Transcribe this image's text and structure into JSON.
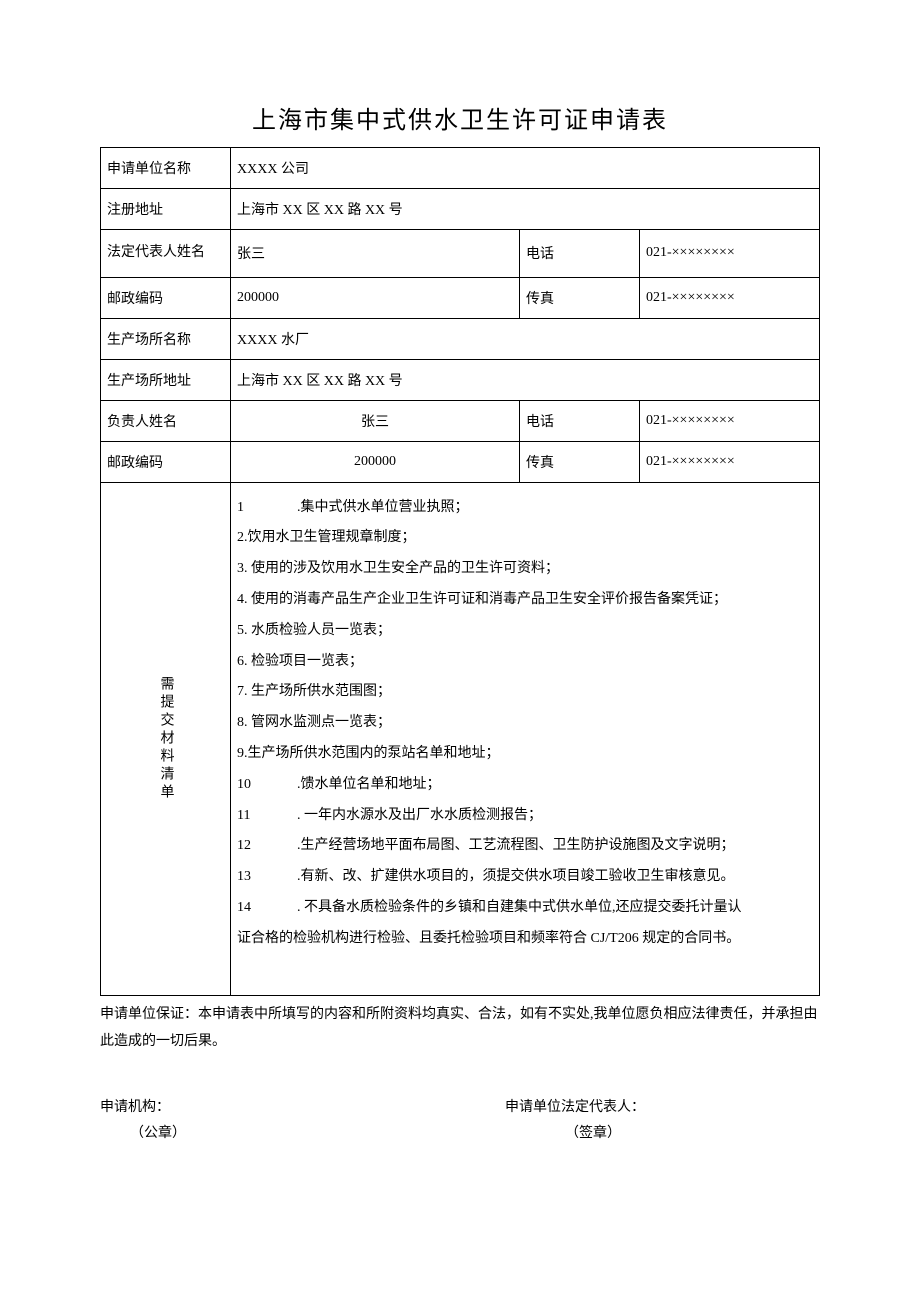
{
  "title": "上海市集中式供水卫生许可证申请表",
  "rows": {
    "unit_name_label": "申请单位名称",
    "unit_name_value": "XXXX 公司",
    "reg_addr_label": "注册地址",
    "reg_addr_value": "上海市 XX 区 XX 路 XX 号",
    "legal_rep_label": "法定代表人姓名",
    "legal_rep_value": "张三",
    "phone_label": "电话",
    "phone_value": "021-××××××××",
    "postal_label": "邮政编码",
    "postal_value": "200000",
    "fax_label": "传真",
    "fax_value": "021-××××××××",
    "prod_site_name_label": "生产场所名称",
    "prod_site_name_value": "XXXX 水厂",
    "prod_site_addr_label": "生产场所地址",
    "prod_site_addr_value": "上海市 XX 区 XX 路 XX 号",
    "resp_person_label": "负责人姓名",
    "resp_person_value": "张三",
    "phone2_label": "电话",
    "phone2_value": "021-××××××××",
    "postal2_label": "邮政编码",
    "postal2_value": "200000",
    "fax2_label": "传真",
    "fax2_value": "021-××××××××"
  },
  "checklist": {
    "header": "需提交材料清单",
    "item1_num": "1",
    "item1_text": ".集中式供水单位营业执照；",
    "item2": "2.饮用水卫生管理规章制度；",
    "item3": "3. 使用的涉及饮用水卫生安全产品的卫生许可资料；",
    "item4": "4. 使用的消毒产品生产企业卫生许可证和消毒产品卫生安全评价报告备案凭证；",
    "item5": "5. 水质检验人员一览表；",
    "item6": "6. 检验项目一览表；",
    "item7": "7. 生产场所供水范围图；",
    "item8": "8. 管网水监测点一览表；",
    "item9": "9.生产场所供水范围内的泵站名单和地址；",
    "item10_num": "10",
    "item10_text": ".馈水单位名单和地址；",
    "item11_num": "11",
    "item11_text": ". 一年内水源水及出厂水水质检测报告；",
    "item12_num": "12",
    "item12_text": ".生产经营场地平面布局图、工艺流程图、卫生防护设施图及文字说明；",
    "item13_num": "13",
    "item13_text": ".有新、改、扩建供水项目的，须提交供水项目竣工验收卫生审核意见。",
    "item14_num": "14",
    "item14_text": ". 不具备水质检验条件的乡镇和自建集中式供水单位,还应提交委托计量认",
    "item14_cont": "证合格的检验机构进行检验、且委托检验项目和频率符合 CJ/T206 规定的合同书。"
  },
  "footer": {
    "guarantee": "申请单位保证：本申请表中所填写的内容和所附资料均真实、合法，如有不实处,我单位愿负相应法律责任，并承担由此造成的一切后果。",
    "org_label": "申请机构：",
    "org_seal": "（公章）",
    "rep_label": "申请单位法定代表人：",
    "rep_seal": "（签章）"
  }
}
